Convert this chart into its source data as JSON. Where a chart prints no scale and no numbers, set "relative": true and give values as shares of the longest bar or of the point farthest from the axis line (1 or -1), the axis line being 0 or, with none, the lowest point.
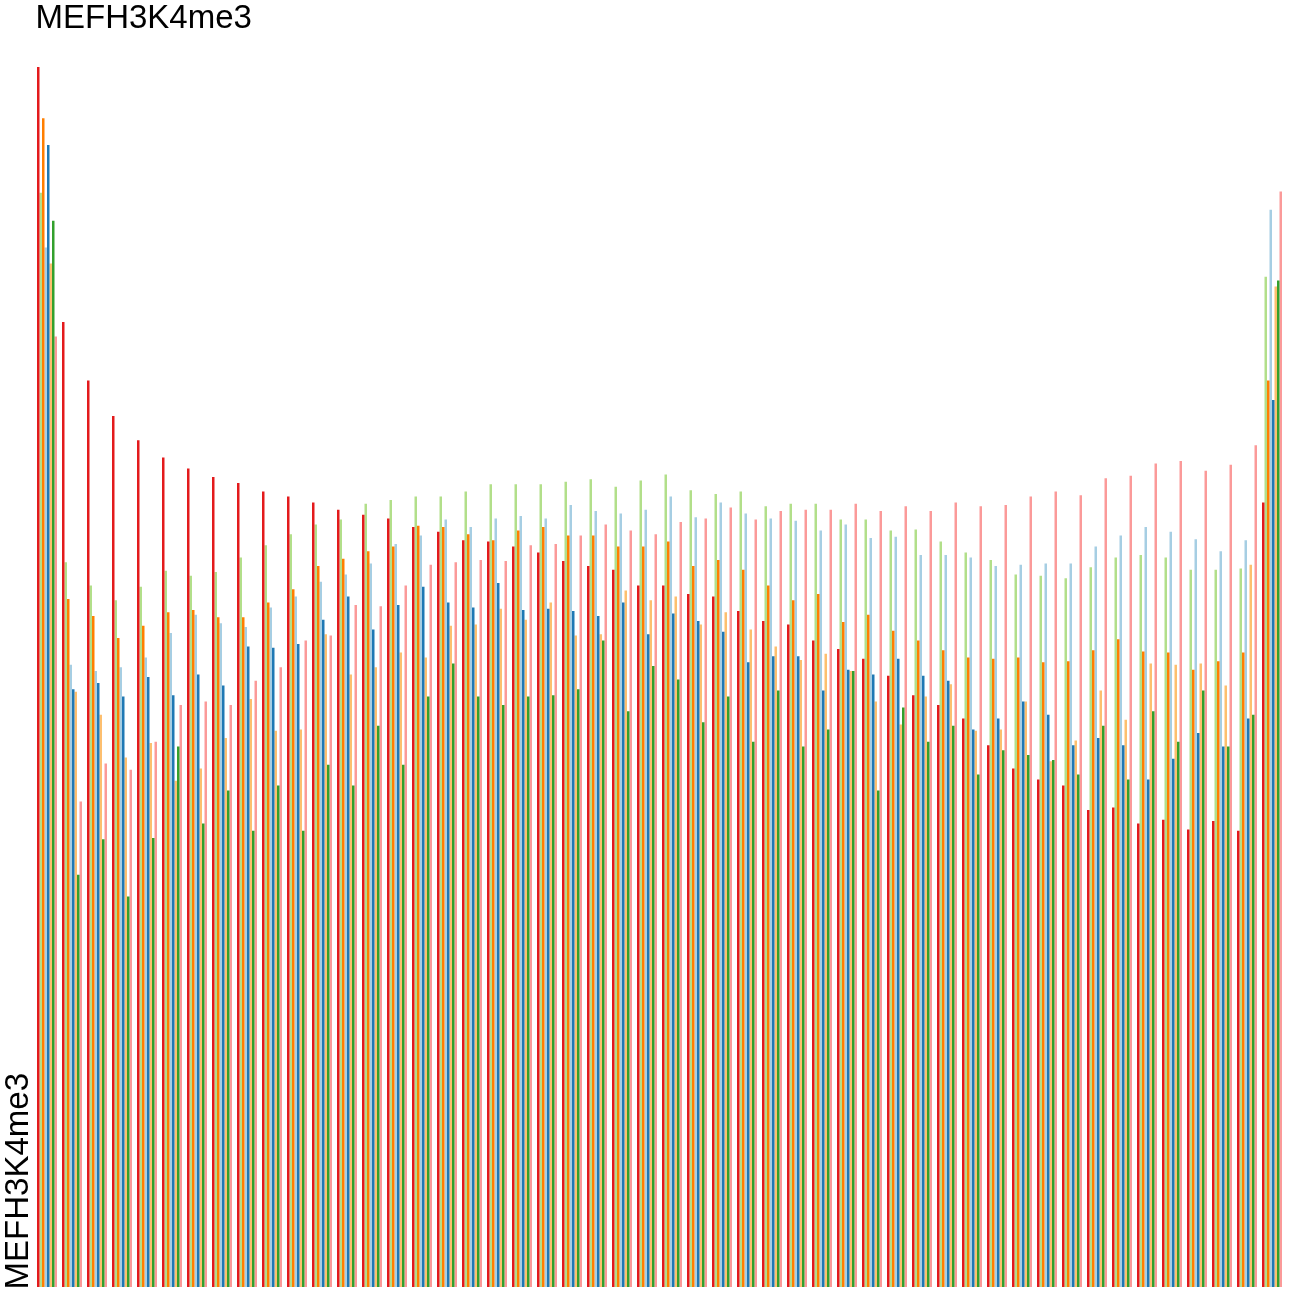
{
  "chart_data": {
    "type": "bar",
    "title": "MEFH3K4me3",
    "ylabel": "MEFH3K4me3",
    "relative": true,
    "tick_labels": false,
    "categories": [
      null,
      null,
      null,
      null,
      null,
      null,
      null,
      null,
      null,
      null,
      null,
      null,
      null,
      null,
      null,
      null,
      null,
      null,
      null,
      null,
      null,
      null,
      null,
      null,
      null,
      null,
      null,
      null,
      null,
      null,
      null,
      null,
      null,
      null,
      null,
      null,
      null,
      null,
      null,
      null,
      null,
      null,
      null,
      null,
      null,
      null,
      null,
      null,
      null,
      null
    ],
    "series": [
      {
        "color": "#e31a1c",
        "values": [
          1,
          0.791,
          0.743,
          0.714,
          0.694,
          0.68,
          0.671,
          0.664,
          0.659,
          0.652,
          0.648,
          0.643,
          0.637,
          0.633,
          0.63,
          0.623,
          0.619,
          0.612,
          0.611,
          0.607,
          0.602,
          0.595,
          0.591,
          0.588,
          0.575,
          0.575,
          0.568,
          0.566,
          0.554,
          0.546,
          0.543,
          0.53,
          0.523,
          0.515,
          0.501,
          0.485,
          0.477,
          0.466,
          0.444,
          0.425,
          0.416,
          0.411,
          0.391,
          0.393,
          0.38,
          0.383,
          0.375,
          0.382,
          0.374,
          0.643
        ]
      },
      {
        "color": "#b2df8a",
        "values": [
          0.897,
          0.594,
          0.575,
          0.563,
          0.574,
          0.587,
          0.583,
          0.586,
          0.598,
          0.608,
          0.617,
          0.625,
          0.629,
          0.642,
          0.645,
          0.648,
          0.648,
          0.652,
          0.658,
          0.658,
          0.658,
          0.66,
          0.662,
          0.656,
          0.661,
          0.666,
          0.653,
          0.65,
          0.652,
          0.64,
          0.642,
          0.642,
          0.629,
          0.629,
          0.62,
          0.621,
          0.611,
          0.602,
          0.596,
          0.584,
          0.583,
          0.581,
          0.59,
          0.598,
          0.6,
          0.598,
          0.588,
          0.588,
          0.589,
          0.828
        ]
      },
      {
        "color": "#ff7f00",
        "values": [
          0.958,
          0.564,
          0.55,
          0.532,
          0.542,
          0.553,
          0.555,
          0.549,
          0.549,
          0.561,
          0.572,
          0.591,
          0.597,
          0.603,
          0.607,
          0.624,
          0.623,
          0.617,
          0.612,
          0.62,
          0.623,
          0.616,
          0.616,
          0.607,
          0.607,
          0.611,
          0.591,
          0.596,
          0.588,
          0.575,
          0.563,
          0.568,
          0.545,
          0.551,
          0.538,
          0.53,
          0.522,
          0.516,
          0.515,
          0.516,
          0.512,
          0.513,
          0.522,
          0.531,
          0.521,
          0.52,
          0.506,
          0.513,
          0.52,
          0.743
        ]
      },
      {
        "color": "#a6cee3",
        "values": [
          0.852,
          0.51,
          0.505,
          0.508,
          0.516,
          0.536,
          0.551,
          0.544,
          0.541,
          0.557,
          0.566,
          0.578,
          0.584,
          0.593,
          0.609,
          0.616,
          0.629,
          0.623,
          0.63,
          0.632,
          0.63,
          0.641,
          0.636,
          0.634,
          0.637,
          0.648,
          0.631,
          0.643,
          0.634,
          0.63,
          0.628,
          0.62,
          0.625,
          0.614,
          0.615,
          0.6,
          0.6,
          0.598,
          0.591,
          0.592,
          0.593,
          0.593,
          0.607,
          0.616,
          0.623,
          0.619,
          0.613,
          0.603,
          0.612,
          0.883
        ]
      },
      {
        "color": "#1f78b4",
        "values": [
          0.936,
          0.49,
          0.495,
          0.484,
          0.5,
          0.485,
          0.502,
          0.493,
          0.525,
          0.524,
          0.527,
          0.547,
          0.566,
          0.539,
          0.559,
          0.574,
          0.561,
          0.557,
          0.577,
          0.555,
          0.556,
          0.554,
          0.55,
          0.561,
          0.535,
          0.552,
          0.546,
          0.537,
          0.512,
          0.517,
          0.517,
          0.489,
          0.506,
          0.502,
          0.515,
          0.501,
          0.497,
          0.457,
          0.466,
          0.48,
          0.469,
          0.444,
          0.45,
          0.444,
          0.416,
          0.433,
          0.454,
          0.443,
          0.466,
          0.727
        ]
      },
      {
        "color": "#fdbf6f",
        "values": [
          0.839,
          0.488,
          0.469,
          0.434,
          0.446,
          0.415,
          0.425,
          0.45,
          0.482,
          0.456,
          0.457,
          0.535,
          0.502,
          0.508,
          0.52,
          0.516,
          0.542,
          0.543,
          0.556,
          0.547,
          0.561,
          0.534,
          0.535,
          0.571,
          0.563,
          0.566,
          0.543,
          0.553,
          0.539,
          0.525,
          0.514,
          0.519,
          0.505,
          0.48,
          0.461,
          0.484,
          0.494,
          0.456,
          0.457,
          0.48,
          0.431,
          0.448,
          0.489,
          0.465,
          0.511,
          0.51,
          0.511,
          0.493,
          0.592,
          0.82
        ]
      },
      {
        "color": "#33a02c",
        "values": [
          0.874,
          0.338,
          0.367,
          0.32,
          0.368,
          0.443,
          0.38,
          0.407,
          0.374,
          0.411,
          0.374,
          0.428,
          0.411,
          0.46,
          0.428,
          0.484,
          0.511,
          0.484,
          0.477,
          0.484,
          0.485,
          0.49,
          0.53,
          0.472,
          0.509,
          0.498,
          0.463,
          0.484,
          0.447,
          0.489,
          0.443,
          0.457,
          0.505,
          0.407,
          0.475,
          0.447,
          0.46,
          0.42,
          0.44,
          0.436,
          0.432,
          0.42,
          0.46,
          0.416,
          0.472,
          0.447,
          0.489,
          0.443,
          0.469,
          0.825
        ]
      },
      {
        "color": "#fb9a99",
        "values": [
          0.779,
          0.398,
          0.429,
          0.424,
          0.447,
          0.477,
          0.48,
          0.477,
          0.497,
          0.508,
          0.53,
          0.534,
          0.559,
          0.558,
          0.575,
          0.592,
          0.594,
          0.596,
          0.595,
          0.608,
          0.609,
          0.616,
          0.625,
          0.62,
          0.617,
          0.627,
          0.63,
          0.639,
          0.629,
          0.636,
          0.637,
          0.637,
          0.642,
          0.636,
          0.64,
          0.636,
          0.643,
          0.64,
          0.641,
          0.648,
          0.652,
          0.649,
          0.663,
          0.665,
          0.675,
          0.677,
          0.669,
          0.674,
          0.69,
          0.898
        ]
      }
    ]
  }
}
